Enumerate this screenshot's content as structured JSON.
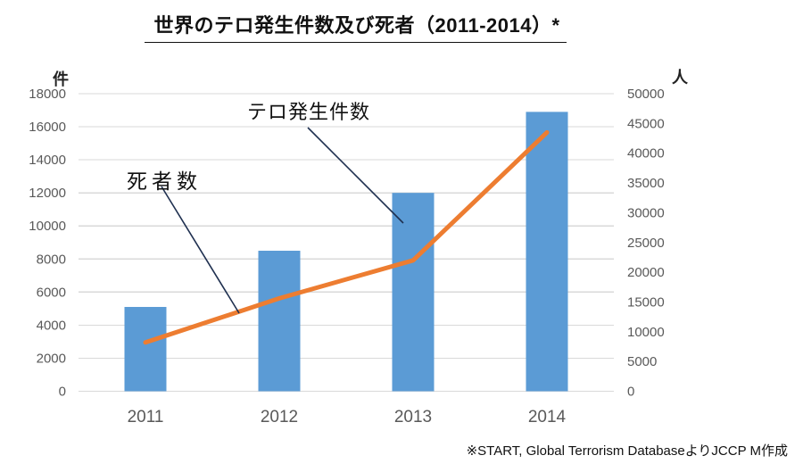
{
  "title": {
    "text": "世界のテロ発生件数及び死者（2011-2014）*"
  },
  "footer": {
    "text": "※START, Global Terrorism DatabaseよりJCCP M作成"
  },
  "colors": {
    "bar": "#5b9bd5",
    "line": "#ed7d31",
    "gridline": "#d9d9d9",
    "axis_text": "#595959",
    "leader_line": "#1f3050",
    "title_text": "#111111"
  },
  "chart_data": {
    "type": "bar",
    "subtype": "combo-bar-line-dual-axis",
    "categories": [
      "2011",
      "2012",
      "2013",
      "2014"
    ],
    "series": [
      {
        "name": "テロ発生件数",
        "type": "bar",
        "axis": "left",
        "values": [
          5100,
          8500,
          12000,
          16900
        ],
        "color": "#5b9bd5"
      },
      {
        "name": "死者数",
        "type": "line",
        "axis": "right",
        "values": [
          8200,
          15600,
          22000,
          43500
        ],
        "color": "#ed7d31"
      }
    ],
    "title": "世界のテロ発生件数及び死者（2011-2014）*",
    "xlabel": "",
    "ylabel_left": "件",
    "ylabel_right": "人",
    "left_axis": {
      "unit": "件",
      "min": 0,
      "max": 18000,
      "step": 2000
    },
    "right_axis": {
      "unit": "人",
      "min": 0,
      "max": 50000,
      "step": 5000
    },
    "grid": "horizontal gridlines on primary (left) axis",
    "legend": "none (inline text annotations with leader lines)",
    "annotations": [
      {
        "text": "死者数",
        "label_for": "死者数 line series, pointing between 2011 and 2012"
      },
      {
        "text": "テロ発生件数",
        "label_for": "テロ発生件数 bar series, pointing at 2013 bar"
      }
    ]
  }
}
